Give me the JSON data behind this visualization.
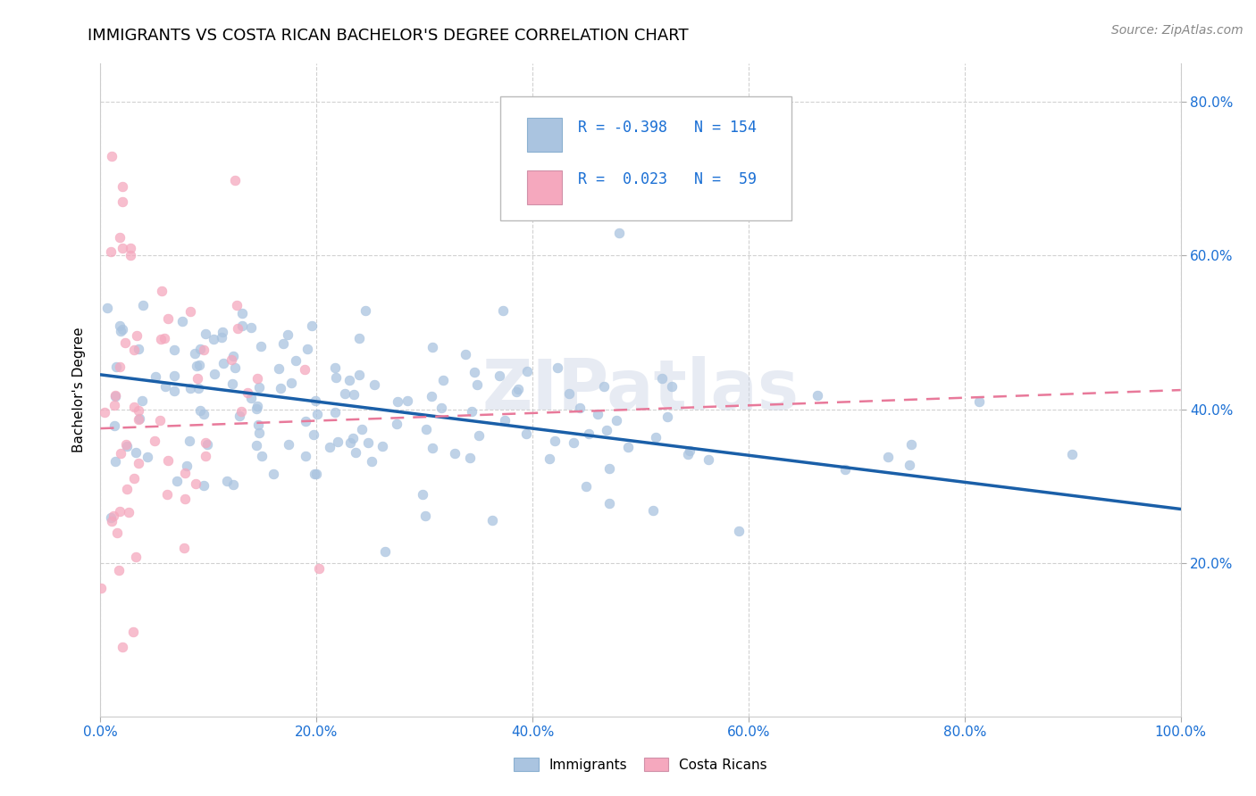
{
  "title": "IMMIGRANTS VS COSTA RICAN BACHELOR'S DEGREE CORRELATION CHART",
  "source": "Source: ZipAtlas.com",
  "ylabel": "Bachelor's Degree",
  "xlim": [
    0,
    1
  ],
  "ylim": [
    0,
    0.85
  ],
  "immigrants_R": "-0.398",
  "immigrants_N": "154",
  "costaricans_R": "0.023",
  "costaricans_N": "59",
  "immigrants_color": "#aac4e0",
  "costaricans_color": "#f5a8be",
  "immigrants_line_color": "#1a5fa8",
  "costaricans_line_color": "#e8799a",
  "legend_color": "#1a6fd4",
  "background_color": "#ffffff",
  "grid_color": "#cccccc",
  "watermark": "ZIPatlas",
  "title_fontsize": 13,
  "axis_label_fontsize": 11,
  "tick_fontsize": 11,
  "source_fontsize": 10,
  "imm_intercept": 0.445,
  "imm_slope": -0.175,
  "cr_intercept": 0.375,
  "cr_slope": 0.05
}
